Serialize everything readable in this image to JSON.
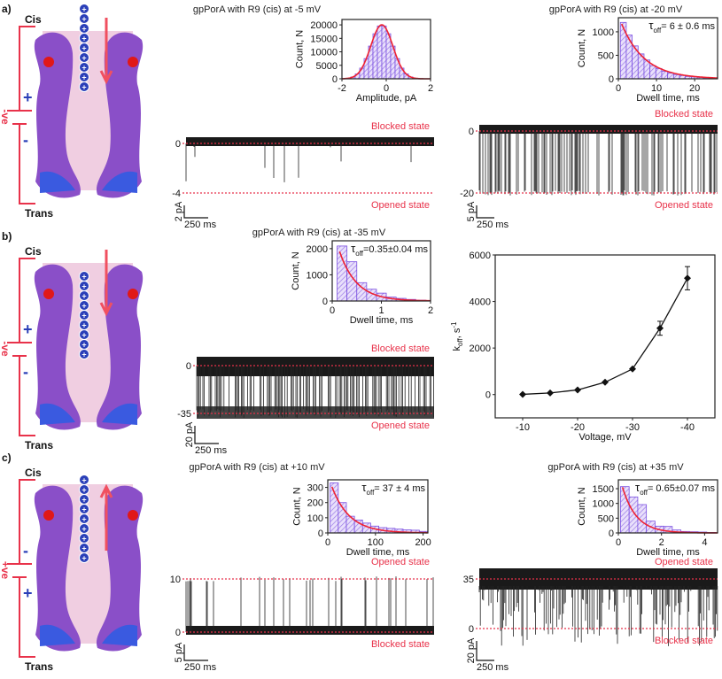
{
  "panels": {
    "a": {
      "label": "a)",
      "pore": {
        "cis": "Cis",
        "trans": "Trans",
        "polarity": "-ve",
        "top_sign": "+",
        "bottom_sign": "-"
      }
    },
    "b": {
      "label": "b)",
      "pore": {
        "cis": "Cis",
        "trans": "Trans",
        "polarity": "-ve",
        "top_sign": "+",
        "bottom_sign": "-"
      }
    },
    "c": {
      "label": "c)",
      "pore": {
        "cis": "Cis",
        "trans": "Trans",
        "polarity": "+ve",
        "top_sign": "-",
        "bottom_sign": "+"
      }
    }
  },
  "titles": {
    "a1": "gpPorA with R9 (cis) at -5 mV",
    "a2": "gpPorA with R9 (cis) at -20 mV",
    "b1": "gpPorA with R9 (cis) at -35 mV",
    "c1": "gpPorA with R9 (cis) at +10 mV",
    "c2": "gpPorA with R9 (cis) at +35 mV"
  },
  "traces": {
    "a1": {
      "levels": [
        "0",
        "-4"
      ],
      "top_state": "Blocked state",
      "bottom_state": "Opened state",
      "scale_y": "2 pA",
      "scale_x": "250 ms"
    },
    "a2": {
      "levels": [
        "0",
        "-20"
      ],
      "top_state": "Blocked state",
      "bottom_state": "Opened state",
      "scale_y": "5 pA",
      "scale_x": "250 ms"
    },
    "b1": {
      "levels": [
        "0",
        "-35"
      ],
      "top_state": "Blocked state",
      "bottom_state": "Opened state",
      "scale_y": "20 pA",
      "scale_x": "250 ms"
    },
    "c1": {
      "levels": [
        "10",
        "0"
      ],
      "top_state": "Opened state",
      "bottom_state": "Blocked state",
      "scale_y": "5 pA",
      "scale_x": "250 ms"
    },
    "c2": {
      "levels": [
        "35",
        "0"
      ],
      "top_state": "Opened state",
      "bottom_state": "Blocked state",
      "scale_y": "20 pA",
      "scale_x": "250 ms"
    }
  },
  "colors": {
    "histogram": "#7a4fe0",
    "fit": "#ee2233",
    "dashed": "#e8324a",
    "protein": "#8a4fc8",
    "trace": "#111111"
  },
  "chart_data": [
    {
      "id": "a1",
      "type": "bar",
      "xlabel": "Amplitude, pA",
      "ylabel": "Count, N",
      "xlim": [
        -2,
        2
      ],
      "ylim": [
        0,
        22000
      ],
      "xticks": [
        -2,
        0,
        2
      ],
      "yticks": [
        0,
        5000,
        10000,
        15000,
        20000
      ],
      "bin_width": 0.2,
      "bin_centers": [
        -1.5,
        -1.3,
        -1.1,
        -0.9,
        -0.7,
        -0.5,
        -0.3,
        -0.1,
        0.1,
        0.3,
        0.5,
        0.7,
        0.9,
        1.1
      ],
      "values": [
        680,
        1780,
        3960,
        7500,
        12130,
        16700,
        19600,
        19600,
        16700,
        12130,
        7500,
        3960,
        1780,
        680
      ],
      "fit": {
        "kind": "gaussian",
        "amplitude": 20000,
        "mean": -0.2,
        "sd": 0.5
      }
    },
    {
      "id": "a2",
      "type": "bar",
      "xlabel": "Dwell time, ms",
      "ylabel": "Count, N",
      "annotation": "= 6 ± 0.6 ms",
      "tau": "τ",
      "tau_sub": "off",
      "xlim": [
        0,
        26
      ],
      "ylim": [
        0,
        1300
      ],
      "xticks": [
        0,
        10,
        20
      ],
      "yticks": [
        0,
        500,
        1000
      ],
      "bin_width": 1.55,
      "bin_centers": [
        1.3,
        2.85,
        4.4,
        5.95,
        7.5,
        9.05,
        10.6,
        12.15,
        13.7,
        15.25,
        16.8,
        18.35,
        19.9,
        21.45,
        23,
        24.55
      ],
      "values": [
        1200,
        930,
        700,
        530,
        400,
        280,
        220,
        160,
        120,
        90,
        70,
        50,
        40,
        30,
        20,
        15
      ],
      "fit": {
        "kind": "exponential",
        "amplitude": 1350,
        "tau": 6
      }
    },
    {
      "id": "b1",
      "type": "bar",
      "xlabel": "Dwell time, ms",
      "ylabel": "Count, N",
      "annotation": "=0.35±0.04 ms",
      "tau": "τ",
      "tau_sub": "off",
      "xlim": [
        0,
        2
      ],
      "ylim": [
        0,
        2300
      ],
      "xticks": [
        0,
        1,
        2
      ],
      "yticks": [
        0,
        1000,
        2000
      ],
      "bin_width": 0.2,
      "bin_centers": [
        0.2,
        0.4,
        0.6,
        0.8,
        1.0,
        1.2,
        1.4,
        1.6,
        1.8
      ],
      "values": [
        2100,
        1500,
        700,
        450,
        300,
        150,
        100,
        60,
        30
      ],
      "fit": {
        "kind": "exponential",
        "amplitude": 2900,
        "tau": 0.35
      }
    },
    {
      "id": "c1",
      "type": "bar",
      "xlabel": "Dwell time, ms",
      "ylabel": "Count, N",
      "annotation": "= 37 ± 4 ms",
      "tau": "τ",
      "tau_sub": "off",
      "xlim": [
        0,
        210
      ],
      "ylim": [
        0,
        350
      ],
      "xticks": [
        0,
        100,
        200
      ],
      "yticks": [
        0,
        100,
        200,
        300
      ],
      "bin_width": 17,
      "bin_centers": [
        13.5,
        30.5,
        47.5,
        64.5,
        81.5,
        98.5,
        115.5,
        132.5,
        149.5,
        166.5,
        183.5,
        200.5
      ],
      "values": [
        330,
        200,
        110,
        85,
        65,
        45,
        35,
        30,
        25,
        20,
        18,
        10
      ],
      "fit": {
        "kind": "exponential",
        "amplitude": 385,
        "tau": 37
      }
    },
    {
      "id": "c2",
      "type": "bar",
      "xlabel": "Dwell time, ms",
      "ylabel": "Count, N",
      "annotation": "= 0.65±0.07 ms",
      "tau": "τ",
      "tau_sub": "off",
      "xlim": [
        0,
        4.6
      ],
      "ylim": [
        0,
        1800
      ],
      "xticks": [
        0,
        2,
        4
      ],
      "yticks": [
        0,
        500,
        1000,
        1500
      ],
      "bin_width": 0.4,
      "bin_centers": [
        0.3,
        0.7,
        1.1,
        1.5,
        1.9,
        2.3,
        2.7,
        3.1,
        3.5,
        3.9,
        4.3
      ],
      "values": [
        1570,
        1220,
        960,
        400,
        230,
        220,
        100,
        50,
        40,
        30,
        15
      ],
      "fit": {
        "kind": "exponential",
        "amplitude": 2080,
        "tau": 0.65
      }
    },
    {
      "id": "koff",
      "type": "line",
      "xlabel": "Voltage, mV",
      "ylabel": "k",
      "ylabel_sub": "off",
      "ylabel_unit": ", s",
      "ylabel_sup": "-1",
      "xlim": [
        -5,
        -45
      ],
      "ylim": [
        -1000,
        6000
      ],
      "xticks": [
        -10,
        -20,
        -30,
        -40
      ],
      "yticks": [
        0,
        2000,
        4000,
        6000
      ],
      "x": [
        -10,
        -15,
        -20,
        -25,
        -30,
        -35,
        -40
      ],
      "y": [
        10,
        70,
        200,
        530,
        1100,
        2850,
        5000
      ],
      "yerr": [
        20,
        30,
        40,
        60,
        80,
        300,
        500
      ]
    }
  ]
}
